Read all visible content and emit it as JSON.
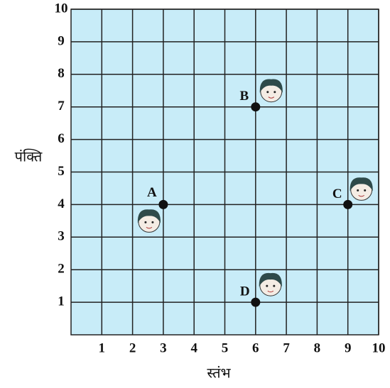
{
  "chart_data": {
    "type": "scatter",
    "x_label": "स्तंभ",
    "y_label": "पंक्ति",
    "xlim": [
      0,
      10
    ],
    "ylim": [
      0,
      10
    ],
    "xticks": [
      1,
      2,
      3,
      4,
      5,
      6,
      7,
      8,
      9,
      10
    ],
    "yticks": [
      1,
      2,
      3,
      4,
      5,
      6,
      7,
      8,
      9,
      10
    ],
    "grid": true,
    "background": "#c8ecf8",
    "color": "#111111",
    "point_labels": [
      "A",
      "B",
      "C",
      "D"
    ],
    "x": [
      3,
      6,
      9,
      6
    ],
    "y": [
      4,
      7,
      4,
      1
    ]
  }
}
